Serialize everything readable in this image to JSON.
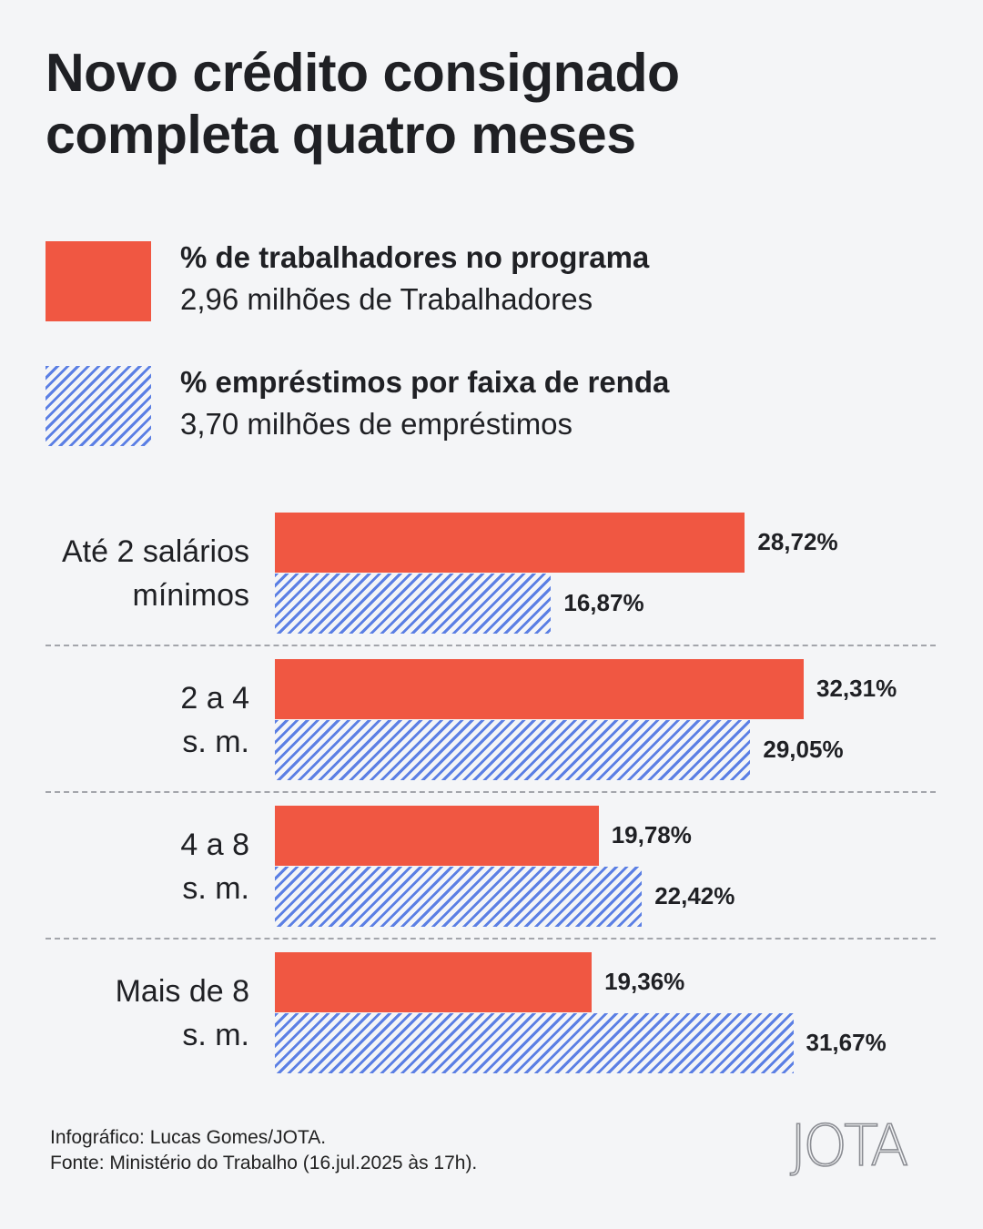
{
  "title": [
    "Novo crédito consignado",
    "completa quatro meses"
  ],
  "legend": [
    {
      "label": "% de trabalhadores no programa",
      "sub": "2,96 milhões de Trabalhadores",
      "style": "solid",
      "color": "#f05742"
    },
    {
      "label": "% empréstimos por faixa de renda",
      "sub": "3,70 milhões de empréstimos",
      "style": "hatch",
      "color": "#5b7fe4"
    }
  ],
  "chart_data": {
    "type": "bar",
    "orientation": "horizontal",
    "title": "Novo crédito consignado completa quatro meses",
    "categories": [
      [
        "Até 2 salários",
        "mínimos"
      ],
      [
        "2 a 4",
        "s. m."
      ],
      [
        "4 a 8",
        "s. m."
      ],
      [
        "Mais de 8",
        "s. m."
      ]
    ],
    "series": [
      {
        "name": "% de trabalhadores no programa",
        "values": [
          28.72,
          32.31,
          19.78,
          19.36
        ],
        "labels": [
          "28,72%",
          "32,31%",
          "19,78%",
          "19,36%"
        ]
      },
      {
        "name": "% empréstimos por faixa de renda",
        "values": [
          16.87,
          29.05,
          22.42,
          31.67
        ],
        "labels": [
          "16,87%",
          "29,05%",
          "22,42%",
          "31,67%"
        ]
      }
    ],
    "xlim": [
      0,
      33
    ],
    "grid": false,
    "legend_position": "top"
  },
  "footer": {
    "credit": "Infográfico: Lucas Gomes/JOTA.",
    "source": "Fonte: Ministério do Trabalho (16.jul.2025 às 17h)."
  },
  "logo": "JOTA"
}
